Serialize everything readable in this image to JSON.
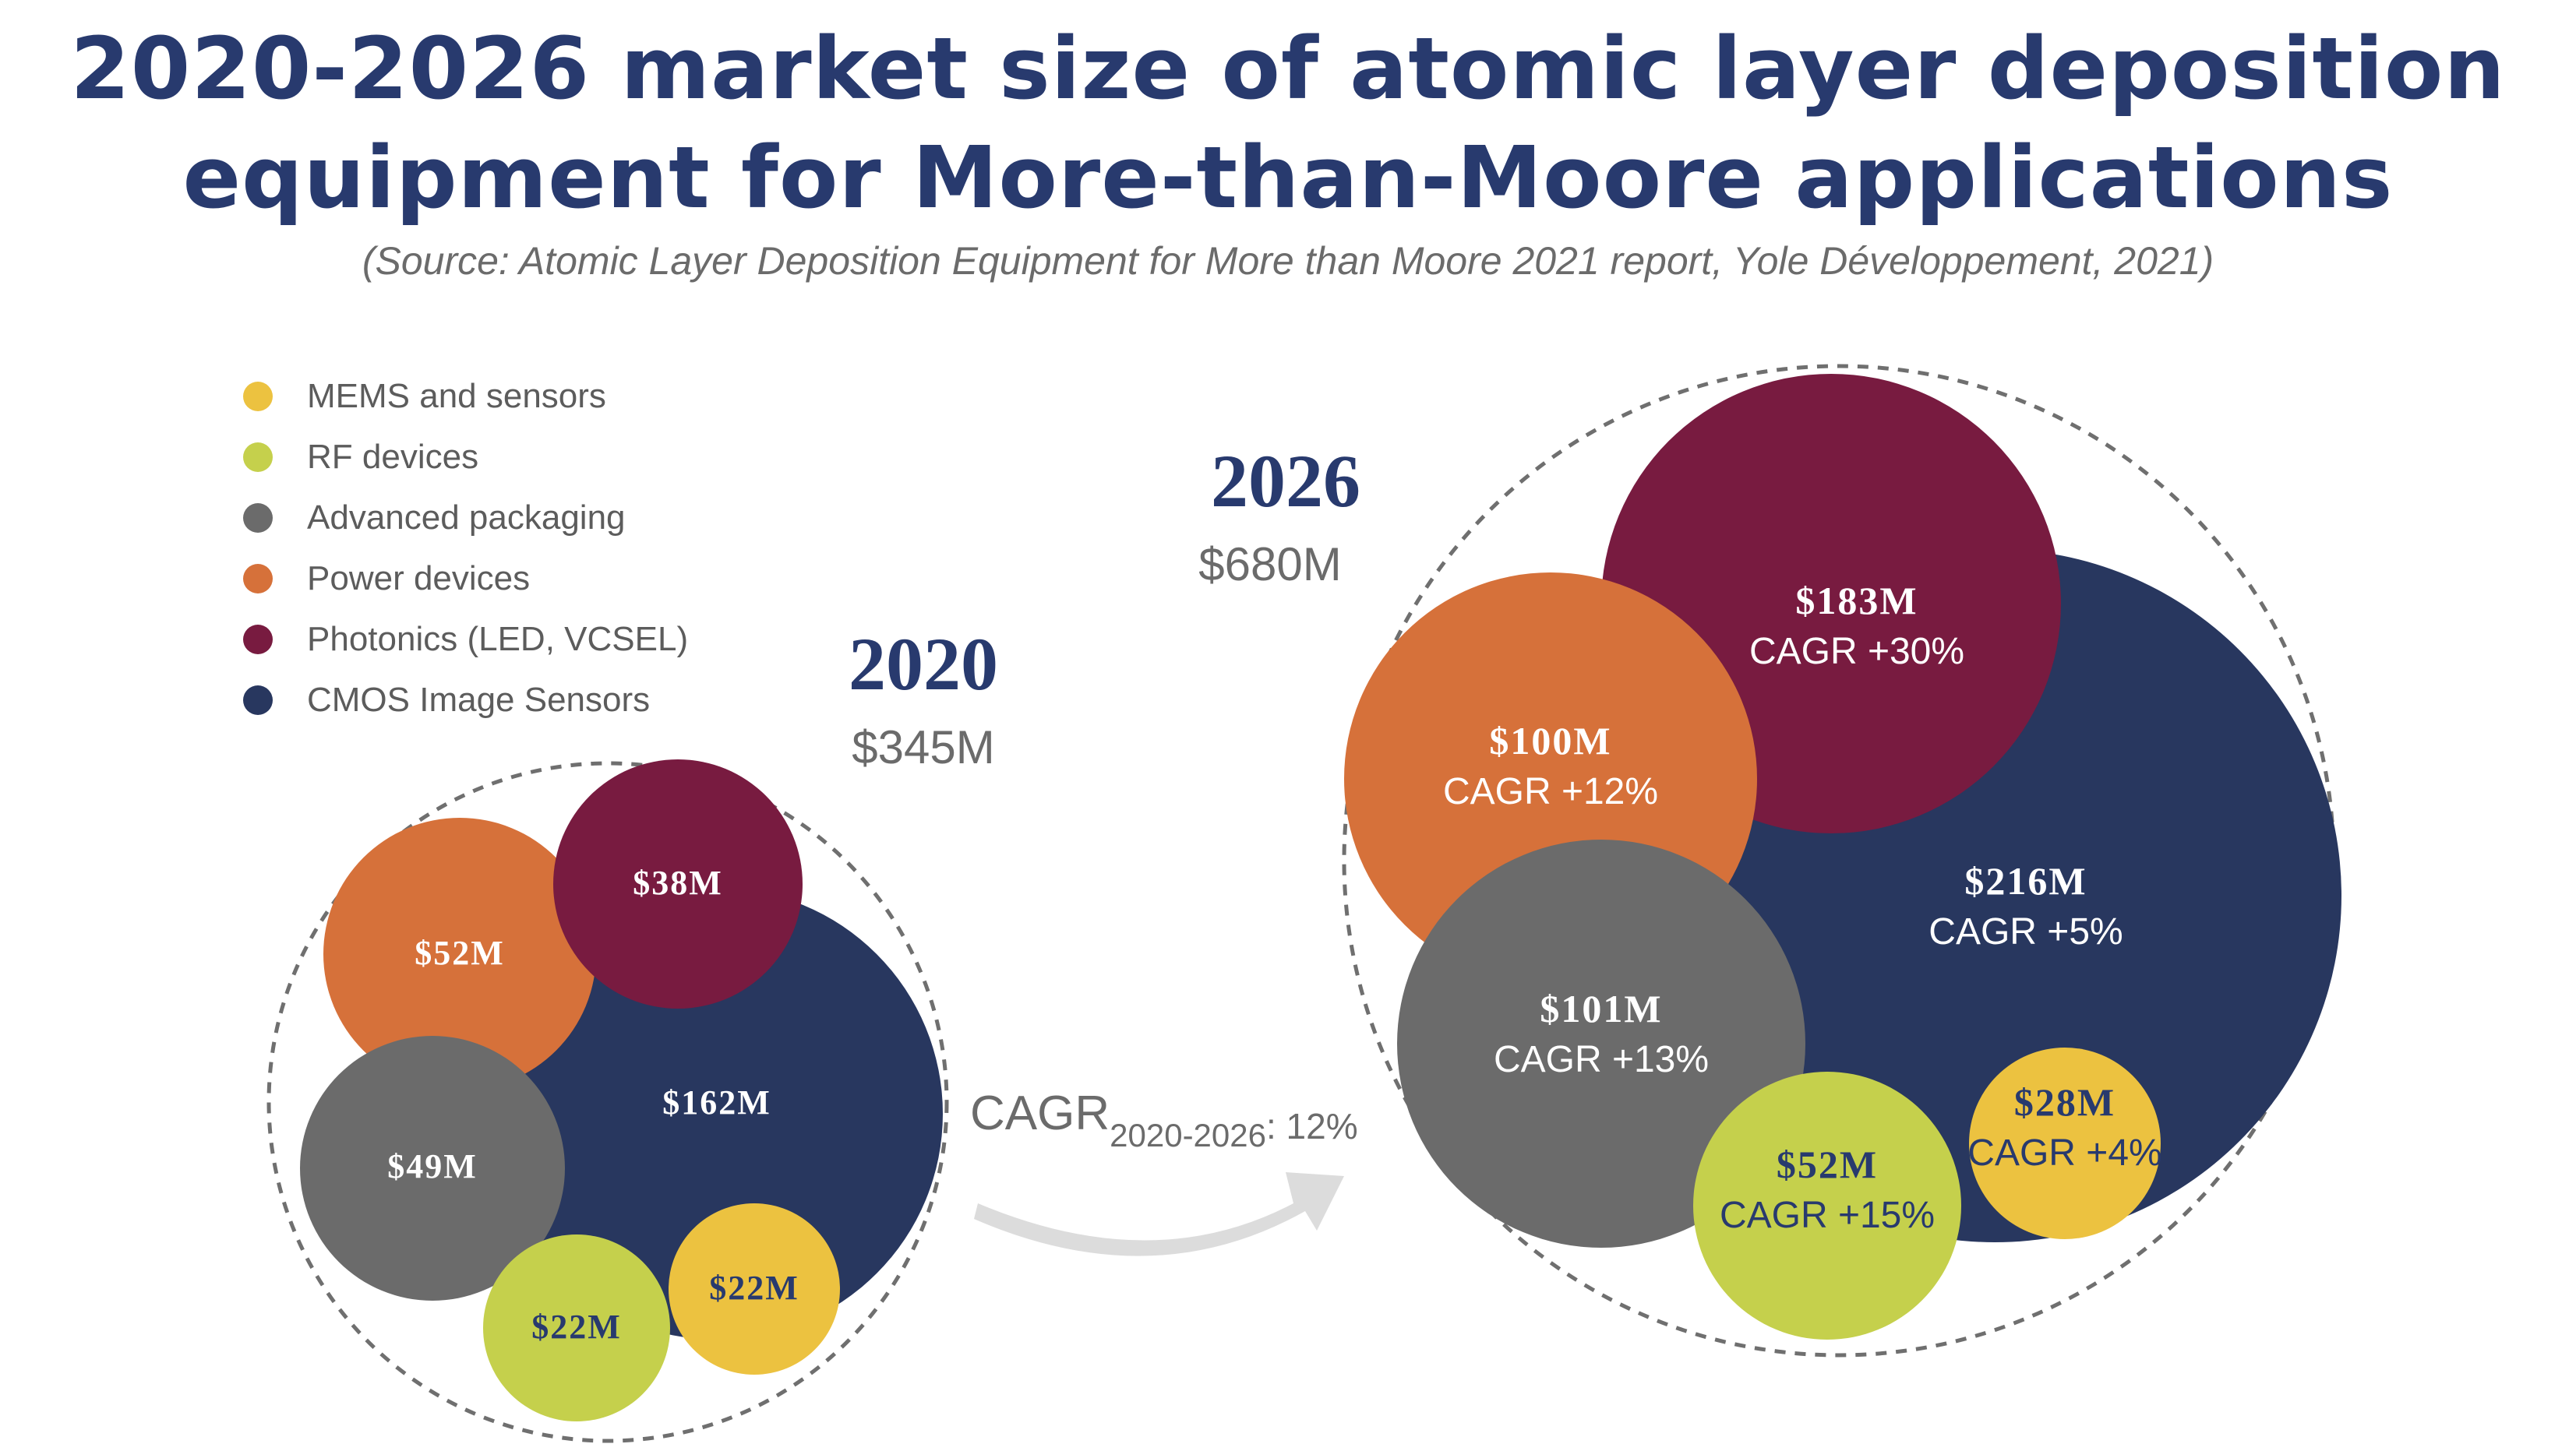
{
  "title_line1": "2020-2026 market size of atomic layer deposition",
  "title_line2": "equipment for More-than-Moore applications",
  "source": "(Source: Atomic Layer Deposition Equipment for More than Moore 2021 report, Yole Développement, 2021)",
  "colors": {
    "title": "#283a6e",
    "MEMS and sensors": "#ecc240",
    "RF devices": "#c5d04c",
    "Advanced packaging": "#6b6b6b",
    "Power devices": "#d6713a",
    "Photonics (LED, VCSEL)": "#781b40",
    "CMOS Image Sensors": "#28375f"
  },
  "chart_data": {
    "type": "bubble",
    "legend": [
      {
        "label": "MEMS and sensors",
        "color": "#ecc240"
      },
      {
        "label": "RF devices",
        "color": "#c5d04c"
      },
      {
        "label": "Advanced packaging",
        "color": "#6b6b6b"
      },
      {
        "label": "Power devices",
        "color": "#d6713a"
      },
      {
        "label": "Photonics (LED, VCSEL)",
        "color": "#781b40"
      },
      {
        "label": "CMOS Image Sensors",
        "color": "#28375f"
      }
    ],
    "groups": [
      {
        "year": "2020",
        "total": "$345M",
        "bubbles": [
          {
            "segment": "CMOS Image Sensors",
            "value": 162,
            "label": "$162M",
            "cagr": ""
          },
          {
            "segment": "Power devices",
            "value": 52,
            "label": "$52M",
            "cagr": ""
          },
          {
            "segment": "Photonics (LED, VCSEL)",
            "value": 38,
            "label": "$38M",
            "cagr": ""
          },
          {
            "segment": "Advanced packaging",
            "value": 49,
            "label": "$49M",
            "cagr": ""
          },
          {
            "segment": "RF devices",
            "value": 22,
            "label": "$22M",
            "cagr": ""
          },
          {
            "segment": "MEMS and sensors",
            "value": 22,
            "label": "$22M",
            "cagr": ""
          }
        ]
      },
      {
        "year": "2026",
        "total": "$680M",
        "bubbles": [
          {
            "segment": "CMOS Image Sensors",
            "value": 216,
            "label": "$216M",
            "cagr": "CAGR +5%"
          },
          {
            "segment": "Photonics (LED, VCSEL)",
            "value": 183,
            "label": "$183M",
            "cagr": "CAGR +30%"
          },
          {
            "segment": "Power devices",
            "value": 100,
            "label": "$100M",
            "cagr": "CAGR +12%"
          },
          {
            "segment": "Advanced packaging",
            "value": 101,
            "label": "$101M",
            "cagr": "CAGR +13%"
          },
          {
            "segment": "RF devices",
            "value": 52,
            "label": "$52M",
            "cagr": "CAGR +15%"
          },
          {
            "segment": "MEMS and sensors",
            "value": 28,
            "label": "$28M",
            "cagr": "CAGR +4%"
          }
        ]
      }
    ],
    "overall_cagr": {
      "prefix": "CAGR",
      "period": "2020-2026",
      "suffix": ": 12%"
    }
  }
}
